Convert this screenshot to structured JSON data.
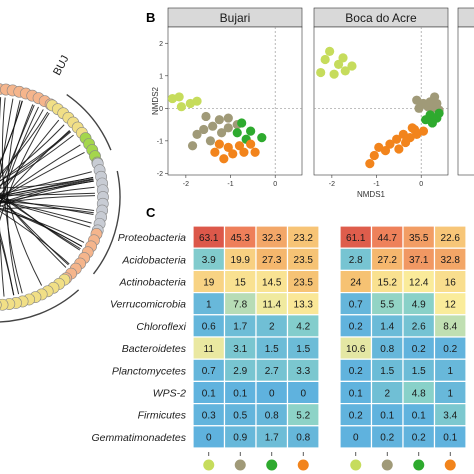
{
  "panel_b_label": "B",
  "panel_c_label": "C",
  "circos_label": "BUJ",
  "colors": {
    "group_1": "#c6dc5c",
    "group_2": "#a09a78",
    "group_3": "#2eaa2e",
    "group_4": "#f2841c",
    "circ_orange": "#f5b58c",
    "circ_yellow": "#f1df86",
    "circ_green": "#a4d64c",
    "circ_gray": "#c8ccd4"
  },
  "chart_data": [
    {
      "type": "scatter",
      "title": "Bujari",
      "xlabel": "",
      "ylabel": "NMDS2",
      "xlim": [
        -2.4,
        0.6
      ],
      "ylim": [
        -2.05,
        2.5
      ],
      "xticks": [
        "-2",
        "-1",
        "0"
      ],
      "yticks": [
        "2",
        "1",
        "0",
        "-1",
        "-2"
      ],
      "grid": true,
      "series": [
        {
          "color": "#c6dc5c",
          "points": [
            [
              -2.15,
              0.35
            ],
            [
              -1.9,
              0.15
            ],
            [
              -2.1,
              0.05
            ],
            [
              -1.75,
              0.22
            ],
            [
              -2.3,
              0.3
            ]
          ]
        },
        {
          "color": "#a09a78",
          "points": [
            [
              -1.55,
              -0.25
            ],
            [
              -1.4,
              -0.55
            ],
            [
              -1.25,
              -0.35
            ],
            [
              -1.05,
              -0.3
            ],
            [
              -1.6,
              -0.65
            ],
            [
              -1.75,
              -0.8
            ],
            [
              -1.45,
              -1.0
            ],
            [
              -1.2,
              -0.75
            ],
            [
              -1.85,
              -1.15
            ],
            [
              -1.05,
              -0.6
            ],
            [
              -0.85,
              -0.5
            ]
          ]
        },
        {
          "color": "#2eaa2e",
          "points": [
            [
              -0.75,
              -0.45
            ],
            [
              -0.55,
              -0.7
            ],
            [
              -0.85,
              -0.75
            ],
            [
              -0.65,
              -0.95
            ],
            [
              -0.3,
              -0.9
            ]
          ]
        },
        {
          "color": "#f2841c",
          "points": [
            [
              -1.25,
              -1.1
            ],
            [
              -1.35,
              -1.35
            ],
            [
              -1.05,
              -1.2
            ],
            [
              -0.95,
              -1.4
            ],
            [
              -0.8,
              -1.15
            ],
            [
              -0.7,
              -1.35
            ],
            [
              -0.55,
              -1.1
            ],
            [
              -0.45,
              -1.35
            ],
            [
              -1.15,
              -1.55
            ]
          ]
        }
      ]
    },
    {
      "type": "scatter",
      "title": "Boca do Acre",
      "xlabel": "NMDS1",
      "ylabel": "",
      "xlim": [
        -2.4,
        0.6
      ],
      "ylim": [
        -2.05,
        2.5
      ],
      "xticks": [
        "-2",
        "-1",
        "0"
      ],
      "yticks": [],
      "grid": true,
      "series": [
        {
          "color": "#c6dc5c",
          "points": [
            [
              -2.05,
              1.75
            ],
            [
              -1.85,
              1.35
            ],
            [
              -2.25,
              1.1
            ],
            [
              -1.95,
              1.05
            ],
            [
              -1.7,
              1.15
            ],
            [
              -1.55,
              1.3
            ],
            [
              -2.15,
              1.5
            ],
            [
              -1.75,
              1.55
            ]
          ]
        },
        {
          "color": "#a09a78",
          "points": [
            [
              -0.1,
              0.25
            ],
            [
              0.05,
              0.15
            ],
            [
              0.2,
              0.2
            ],
            [
              0.35,
              0.15
            ],
            [
              0.15,
              0.05
            ],
            [
              0.25,
              0.0
            ],
            [
              0.4,
              -0.05
            ],
            [
              -0.05,
              0.0
            ],
            [
              0.3,
              0.35
            ]
          ]
        },
        {
          "color": "#2eaa2e",
          "points": [
            [
              0.2,
              -0.2
            ],
            [
              0.35,
              -0.3
            ],
            [
              0.1,
              -0.35
            ],
            [
              0.25,
              -0.45
            ],
            [
              0.4,
              -0.15
            ]
          ]
        },
        {
          "color": "#f2841c",
          "points": [
            [
              -0.15,
              -0.65
            ],
            [
              -0.4,
              -0.8
            ],
            [
              -0.55,
              -0.95
            ],
            [
              -0.25,
              -0.9
            ],
            [
              -0.7,
              -1.1
            ],
            [
              -0.35,
              -1.05
            ],
            [
              -0.1,
              -0.8
            ],
            [
              -0.8,
              -1.3
            ],
            [
              -0.5,
              -1.25
            ],
            [
              -1.05,
              -1.45
            ],
            [
              -0.95,
              -1.2
            ],
            [
              -1.15,
              -1.7
            ],
            [
              -0.2,
              -0.6
            ],
            [
              0.05,
              -0.7
            ]
          ]
        }
      ]
    },
    {
      "type": "heatmap",
      "rows": [
        "Proteobacteria",
        "Acidobacteria",
        "Actinobacteria",
        "Verrucomicrobia",
        "Chloroflexi",
        "Bacteroidetes",
        "Planctomycetes",
        "WPS-2",
        "Firmicutes",
        "Gemmatimonadetes"
      ],
      "left_values": [
        [
          "63.1",
          "45.3",
          "32.3",
          "23.2"
        ],
        [
          "3.9",
          "19.9",
          "27.3",
          "23.5"
        ],
        [
          "19",
          "15",
          "14.5",
          "23.5"
        ],
        [
          "1",
          "7.8",
          "11.4",
          "13.3"
        ],
        [
          "0.6",
          "1.7",
          "2",
          "4.2"
        ],
        [
          "11",
          "3.1",
          "1.5",
          "1.5"
        ],
        [
          "0.7",
          "2.9",
          "2.7",
          "3.3"
        ],
        [
          "0.1",
          "0.1",
          "0",
          "0"
        ],
        [
          "0.3",
          "0.5",
          "0.8",
          "5.2"
        ],
        [
          "0",
          "0.9",
          "1.7",
          "0.8"
        ]
      ],
      "right_values": [
        [
          "61.1",
          "44.7",
          "35.5",
          "22.6"
        ],
        [
          "2.8",
          "27.2",
          "37.1",
          "32.8"
        ],
        [
          "24",
          "15.2",
          "12.4",
          "16"
        ],
        [
          "0.7",
          "5.5",
          "4.9",
          "12"
        ],
        [
          "0.2",
          "1.4",
          "2.6",
          "8.4"
        ],
        [
          "10.6",
          "0.8",
          "0.2",
          "0.2"
        ],
        [
          "0.2",
          "1.5",
          "1.5",
          "1"
        ],
        [
          "0.1",
          "2",
          "4.8",
          "1"
        ],
        [
          "0.2",
          "0.1",
          "0.1",
          "3.4"
        ],
        [
          "0",
          "0.2",
          "0.2",
          "0.1"
        ]
      ]
    }
  ]
}
